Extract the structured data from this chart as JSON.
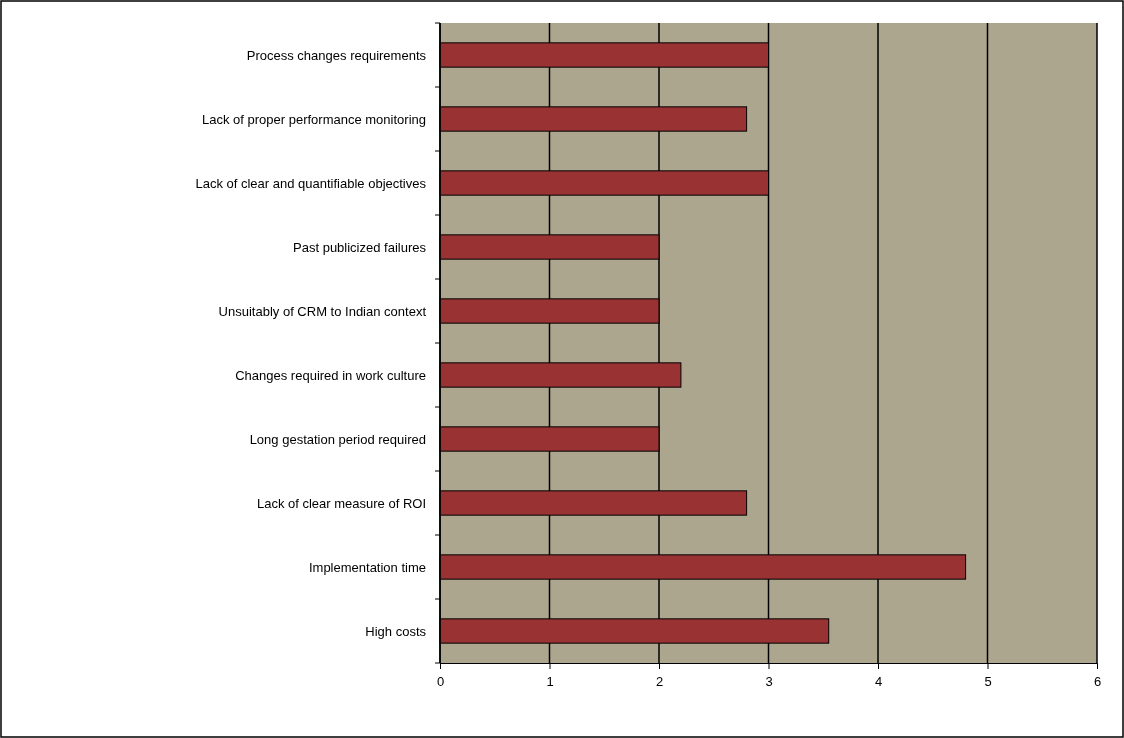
{
  "chart_data": {
    "type": "bar",
    "orientation": "horizontal",
    "categories": [
      "Process changes requirements",
      "Lack of proper performance monitoring",
      "Lack of clear and quantifiable objectives",
      "Past publicized failures",
      "Unsuitably of CRM to Indian context",
      "Changes required in work culture",
      "Long gestation period required",
      "Lack of clear measure of ROI",
      "Implementation time",
      "High costs"
    ],
    "values": [
      3.0,
      2.8,
      3.0,
      2.0,
      2.0,
      2.2,
      2.0,
      2.8,
      4.8,
      3.55
    ],
    "color": "#993333",
    "xlim": [
      0,
      6
    ],
    "xticks": [
      0,
      1,
      2,
      3,
      4,
      5,
      6
    ],
    "grid": "x"
  }
}
